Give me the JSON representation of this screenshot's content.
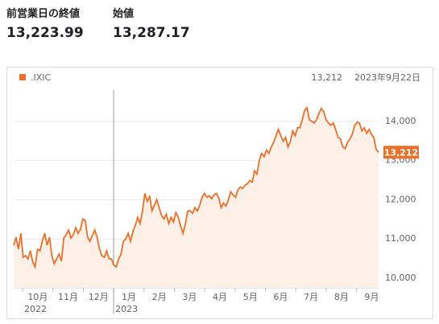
{
  "summary": [
    {
      "label": "前営業日の終値",
      "value": "13,223.99"
    },
    {
      "label": "始値",
      "value": "13,287.17"
    }
  ],
  "chart_data": {
    "type": "line",
    "series": [
      {
        "name": ".IXIC",
        "color": "#e8702a",
        "values": [
          10837,
          11041,
          10735,
          11143,
          10531,
          10571,
          10490,
          10694,
          10408,
          10286,
          10735,
          10694,
          10939,
          11143,
          10837,
          11041,
          10571,
          10367,
          10490,
          10612,
          10429,
          11020,
          11102,
          11224,
          11020,
          11102,
          11286,
          11143,
          11245,
          11510,
          11469,
          11041,
          10939,
          11082,
          11224,
          11041,
          10735,
          10571,
          10531,
          10694,
          10490,
          10490,
          10327,
          10286,
          10490,
          10612,
          10939,
          11000,
          11143,
          10939,
          11184,
          11347,
          11551,
          11388,
          11714,
          12163,
          11959,
          12082,
          11714,
          11857,
          12000,
          11796,
          11592,
          11510,
          11633,
          11388,
          11551,
          11429,
          11673,
          11551,
          11327,
          11143,
          11388,
          11714,
          11714,
          11653,
          11796,
          11714,
          11857,
          12061,
          12163,
          12061,
          12102,
          12020,
          12122,
          12163,
          12041,
          11796,
          11918,
          11837,
          12000,
          12204,
          12122,
          12061,
          12245,
          12327,
          12286,
          12367,
          12408,
          12490,
          12449,
          12735,
          12653,
          13020,
          13184,
          13102,
          13265,
          13184,
          13347,
          13469,
          13633,
          13796,
          13633,
          13490,
          13592,
          13347,
          13490,
          13755,
          13633,
          13837,
          13837,
          14041,
          14286,
          14347,
          14041,
          14000,
          13959,
          14041,
          14204,
          14327,
          14245,
          14041,
          13959,
          13898,
          13959,
          13796,
          13592,
          13551,
          13347,
          13306,
          13469,
          13551,
          13673,
          13898,
          13980,
          13959,
          13755,
          13837,
          13694,
          13796,
          13673,
          13592,
          13286,
          13212
        ]
      }
    ],
    "latest": "13,212",
    "date": "2023年9月22日",
    "months": [
      "10月",
      "11月",
      "12月",
      "1月",
      "2月",
      "3月",
      "4月",
      "5月",
      "6月",
      "7月",
      "8月",
      "9月"
    ],
    "years": [
      "2022",
      null,
      null,
      "2023",
      null,
      null,
      null,
      null,
      null,
      null,
      null,
      null
    ],
    "ylim": [
      9750,
      14800
    ],
    "yticks": [
      {
        "value": 10000,
        "label": "10,000"
      },
      {
        "value": 11000,
        "label": "11,000"
      },
      {
        "value": 12000,
        "label": "12,000"
      },
      {
        "value": 13000,
        "label": "13,000"
      },
      {
        "value": 14000,
        "label": "14,000"
      }
    ],
    "grid": true
  }
}
